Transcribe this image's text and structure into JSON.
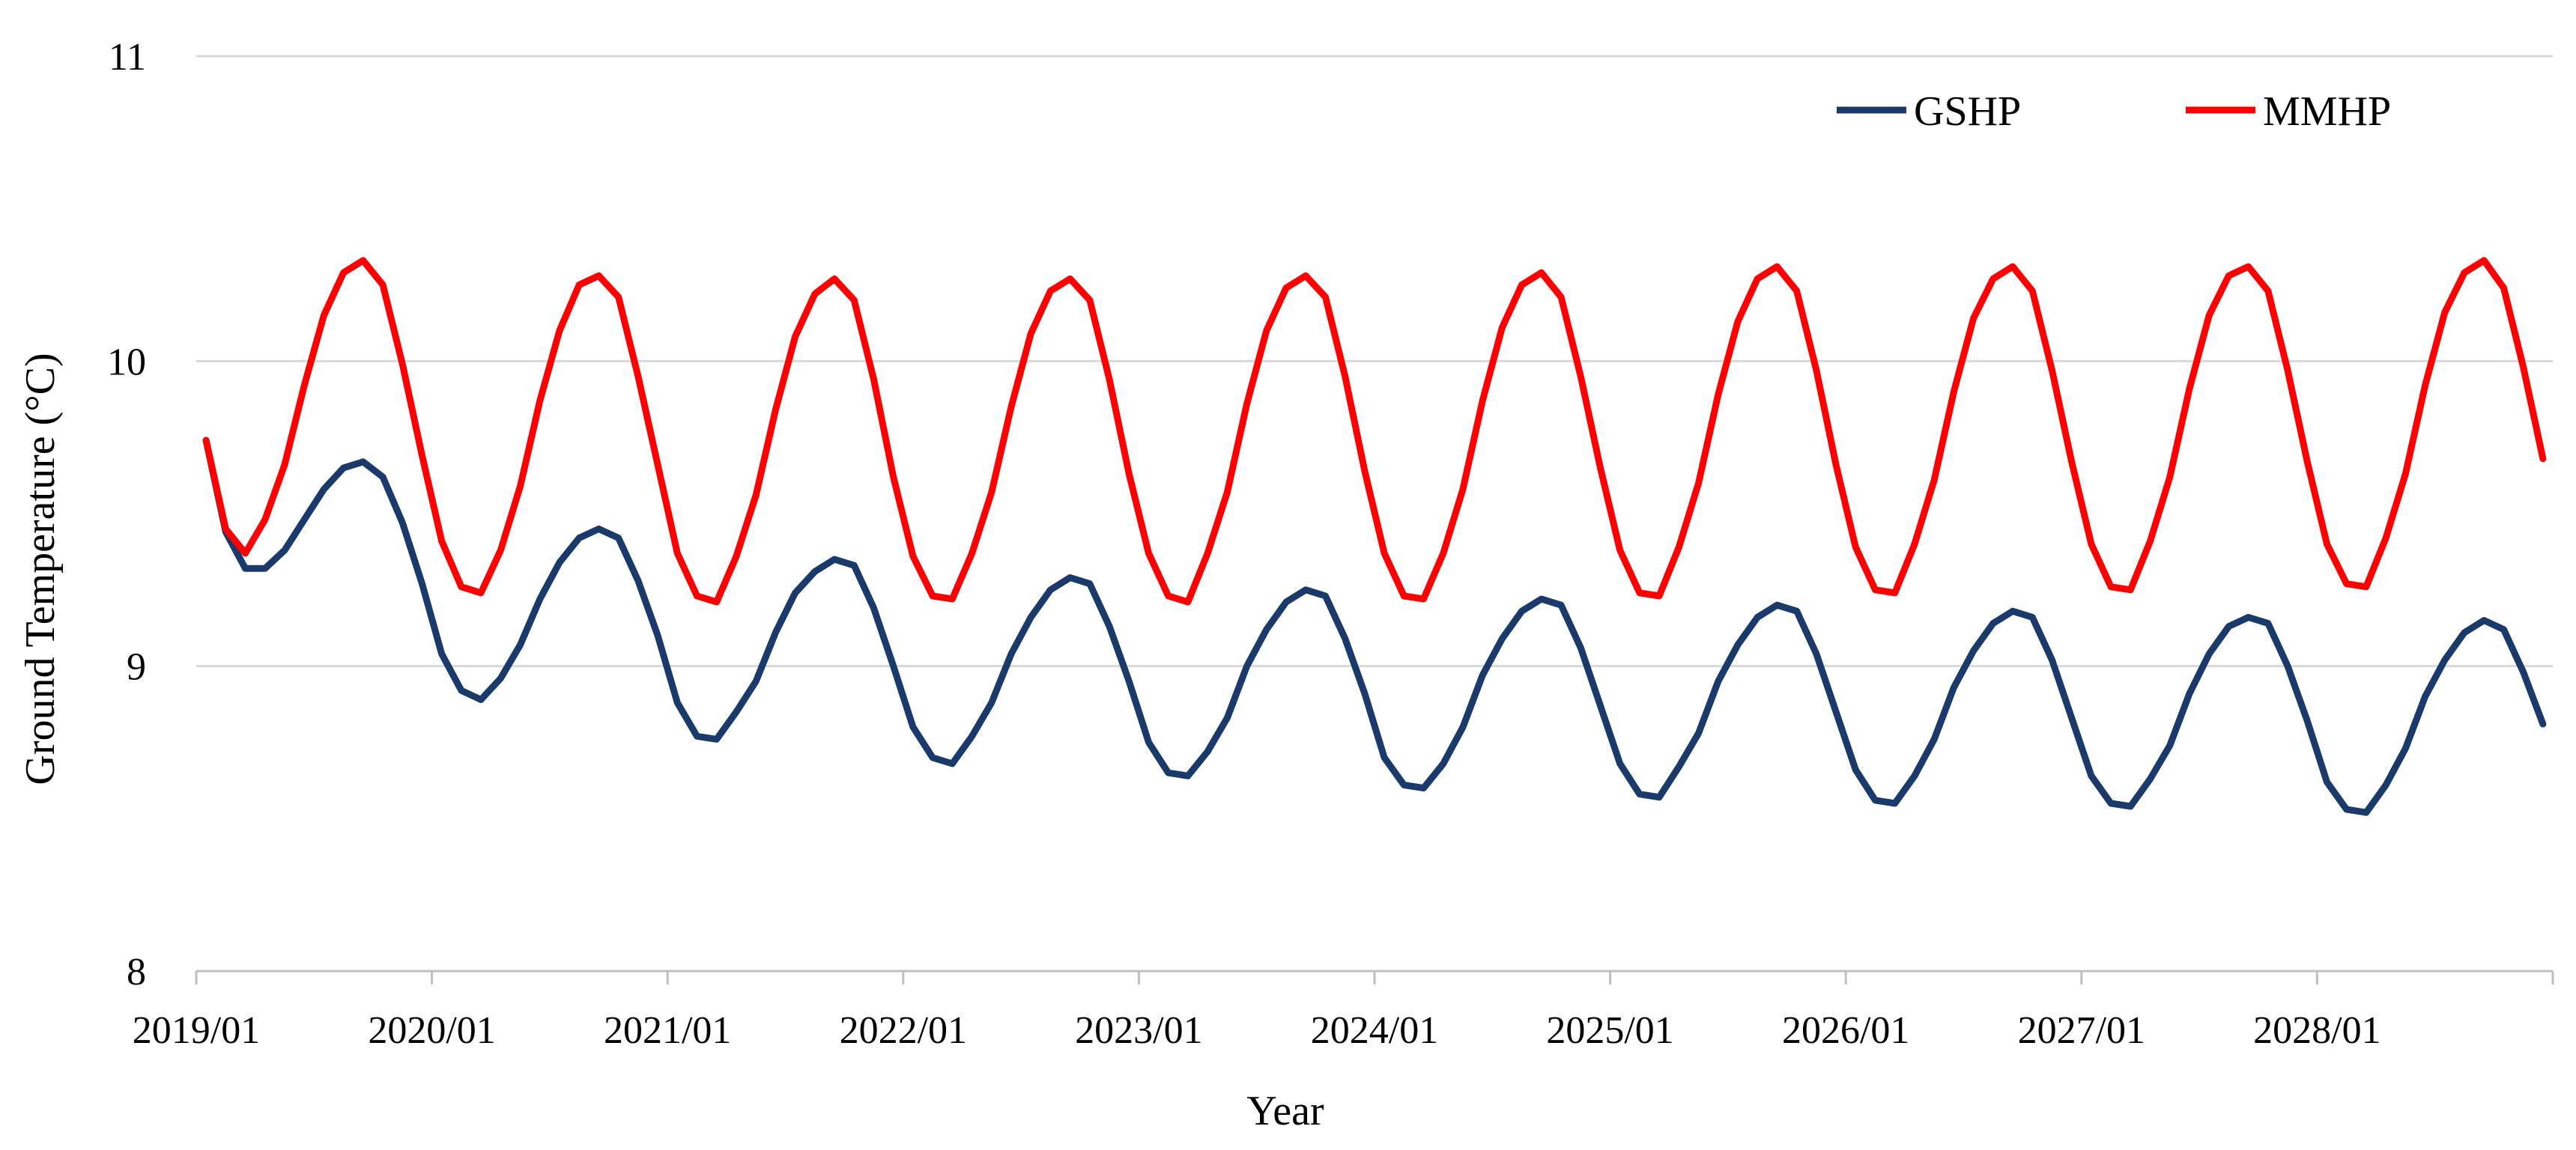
{
  "chart_data": {
    "type": "line",
    "title": "",
    "xlabel": "Year",
    "ylabel": "Ground Temperature (°C)",
    "ylim": [
      8,
      11
    ],
    "yticks": [
      8,
      9,
      10,
      11
    ],
    "grid": true,
    "legend_position": "top-right",
    "x_start": "2019/01",
    "x_end": "2028/12",
    "x_ticks": [
      "2019/01",
      "2020/01",
      "2021/01",
      "2022/01",
      "2023/01",
      "2024/01",
      "2025/01",
      "2026/01",
      "2027/01",
      "2028/01"
    ],
    "series": [
      {
        "name": "GSHP",
        "color": "#1a3a6b",
        "values": [
          9.74,
          9.44,
          9.32,
          9.32,
          9.38,
          9.48,
          9.58,
          9.65,
          9.67,
          9.62,
          9.47,
          9.27,
          9.04,
          8.92,
          8.89,
          8.96,
          9.07,
          9.22,
          9.34,
          9.42,
          9.45,
          9.42,
          9.28,
          9.1,
          8.88,
          8.77,
          8.76,
          8.85,
          8.95,
          9.11,
          9.24,
          9.31,
          9.35,
          9.33,
          9.19,
          9.0,
          8.8,
          8.7,
          8.68,
          8.77,
          8.88,
          9.04,
          9.16,
          9.25,
          9.29,
          9.27,
          9.13,
          8.95,
          8.75,
          8.65,
          8.64,
          8.72,
          8.83,
          9.0,
          9.12,
          9.21,
          9.25,
          9.23,
          9.09,
          8.91,
          8.7,
          8.61,
          8.6,
          8.68,
          8.8,
          8.97,
          9.09,
          9.18,
          9.22,
          9.2,
          9.06,
          8.87,
          8.68,
          8.58,
          8.57,
          8.67,
          8.78,
          8.95,
          9.07,
          9.16,
          9.2,
          9.18,
          9.04,
          8.85,
          8.66,
          8.56,
          8.55,
          8.64,
          8.76,
          8.93,
          9.05,
          9.14,
          9.18,
          9.16,
          9.02,
          8.83,
          8.64,
          8.55,
          8.54,
          8.63,
          8.74,
          8.91,
          9.04,
          9.13,
          9.16,
          9.14,
          9.0,
          8.82,
          8.62,
          8.53,
          8.52,
          8.61,
          8.73,
          8.9,
          9.02,
          9.11,
          9.15,
          9.12,
          8.98,
          8.81
        ]
      },
      {
        "name": "MMHP",
        "color": "#ff0000",
        "values": [
          9.74,
          9.45,
          9.37,
          9.48,
          9.66,
          9.92,
          10.15,
          10.29,
          10.33,
          10.25,
          9.99,
          9.69,
          9.41,
          9.26,
          9.24,
          9.38,
          9.59,
          9.87,
          10.1,
          10.25,
          10.28,
          10.21,
          9.95,
          9.66,
          9.37,
          9.23,
          9.21,
          9.36,
          9.56,
          9.84,
          10.08,
          10.22,
          10.27,
          10.2,
          9.94,
          9.62,
          9.36,
          9.23,
          9.22,
          9.37,
          9.57,
          9.85,
          10.09,
          10.23,
          10.27,
          10.2,
          9.94,
          9.63,
          9.37,
          9.23,
          9.21,
          9.37,
          9.57,
          9.86,
          10.1,
          10.24,
          10.28,
          10.21,
          9.95,
          9.64,
          9.37,
          9.23,
          9.22,
          9.37,
          9.58,
          9.87,
          10.11,
          10.25,
          10.29,
          10.21,
          9.95,
          9.65,
          9.38,
          9.24,
          9.23,
          9.39,
          9.6,
          9.89,
          10.13,
          10.27,
          10.31,
          10.23,
          9.97,
          9.66,
          9.39,
          9.25,
          9.24,
          9.4,
          9.61,
          9.9,
          10.14,
          10.27,
          10.31,
          10.23,
          9.97,
          9.67,
          9.4,
          9.26,
          9.25,
          9.41,
          9.62,
          9.91,
          10.15,
          10.28,
          10.31,
          10.23,
          9.97,
          9.67,
          9.4,
          9.27,
          9.26,
          9.42,
          9.63,
          9.92,
          10.16,
          10.29,
          10.33,
          10.24,
          9.98,
          9.68
        ]
      }
    ]
  }
}
